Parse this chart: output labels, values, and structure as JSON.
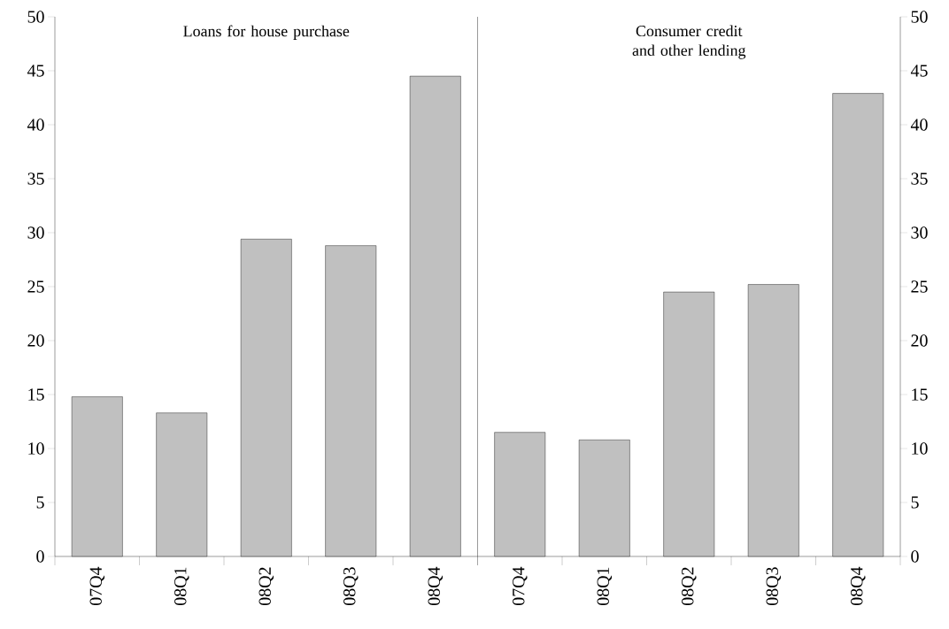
{
  "chart_data": [
    {
      "type": "bar",
      "categories": [
        "07Q4",
        "08Q1",
        "08Q2",
        "08Q3",
        "08Q4"
      ],
      "values": [
        14.8,
        13.3,
        29.4,
        28.8,
        44.5
      ],
      "color": "#c0c0c0",
      "ylim": [
        0,
        50
      ],
      "yticks": [
        0,
        5,
        10,
        15,
        20,
        25,
        30,
        35,
        40,
        45,
        50
      ],
      "annotations": [
        "Loans for house purchase"
      ]
    },
    {
      "type": "bar",
      "categories": [
        "07Q4",
        "08Q1",
        "08Q2",
        "08Q3",
        "08Q4"
      ],
      "values": [
        11.5,
        10.8,
        24.5,
        25.2,
        42.9
      ],
      "color": "#c0c0c0",
      "ylim": [
        0,
        50
      ],
      "yticks": [
        0,
        5,
        10,
        15,
        20,
        25,
        30,
        35,
        40,
        45,
        50
      ],
      "annotations": [
        "Consumer credit and other lending"
      ]
    }
  ]
}
